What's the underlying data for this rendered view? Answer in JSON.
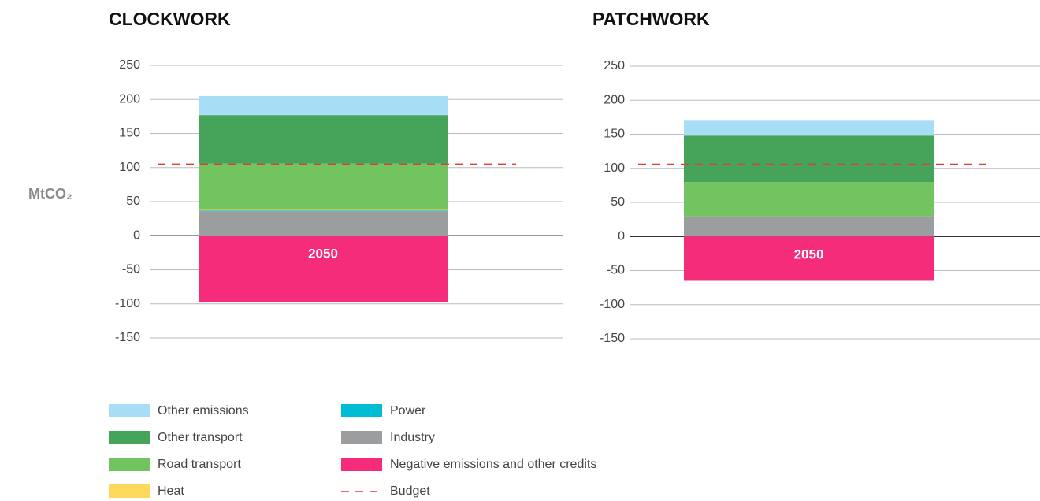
{
  "chart_data": [
    {
      "type": "bar",
      "title": "CLOCKWORK",
      "ylabel": "MtCO₂",
      "categories": [
        "2050"
      ],
      "ylim": [
        -150,
        250
      ],
      "yticks": [
        -150,
        -100,
        -50,
        0,
        50,
        100,
        150,
        200,
        250
      ],
      "grid": true,
      "series": [
        {
          "name": "Industry",
          "color": "#9b9d9e",
          "values": [
            36
          ]
        },
        {
          "name": "Power",
          "color": "#00bcd4",
          "values": [
            1
          ]
        },
        {
          "name": "Heat",
          "color": "#fdd85b",
          "values": [
            2
          ]
        },
        {
          "name": "Road transport",
          "color": "#72c461",
          "values": [
            67
          ]
        },
        {
          "name": "Other transport",
          "color": "#45a35a",
          "values": [
            71
          ]
        },
        {
          "name": "Other emissions",
          "color": "#a8def5",
          "values": [
            28
          ]
        },
        {
          "name": "Negative emissions and other credits",
          "color": "#f52c7a",
          "values": [
            -98
          ]
        }
      ],
      "budget": {
        "name": "Budget",
        "value": 105,
        "color": "#e53935"
      }
    },
    {
      "type": "bar",
      "title": "PATCHWORK",
      "categories": [
        "2050"
      ],
      "ylim": [
        -150,
        250
      ],
      "yticks": [
        -150,
        -100,
        -50,
        0,
        50,
        100,
        150,
        200,
        250
      ],
      "grid": true,
      "series": [
        {
          "color": "#9b9d9e",
          "values": [
            30
          ]
        },
        {
          "color": "#00bcd4",
          "values": [
            0
          ]
        },
        {
          "color": "#fdd85b",
          "values": [
            0
          ]
        },
        {
          "color": "#72c461",
          "values": [
            50
          ]
        },
        {
          "color": "#45a35a",
          "values": [
            68
          ]
        },
        {
          "color": "#a8def5",
          "values": [
            23
          ]
        },
        {
          "color": "#f52c7a",
          "values": [
            -65
          ]
        }
      ],
      "budget": {
        "value": 106,
        "color": "#e53935"
      }
    }
  ]
}
